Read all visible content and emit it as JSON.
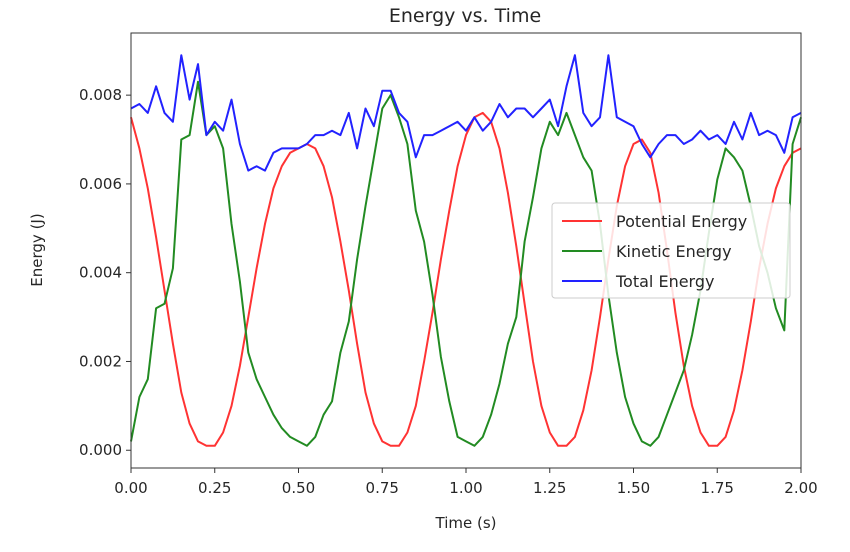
{
  "chart_data": {
    "type": "line",
    "title": "Energy vs. Time",
    "xlabel": "Time (s)",
    "ylabel": "Energy (J)",
    "xlim": [
      0.0,
      2.0
    ],
    "ylim": [
      -0.0004,
      0.0094
    ],
    "xticks": [
      0.0,
      0.25,
      0.5,
      0.75,
      1.0,
      1.25,
      1.5,
      1.75,
      2.0
    ],
    "xtick_labels": [
      "0.00",
      "0.25",
      "0.50",
      "0.75",
      "1.00",
      "1.25",
      "1.50",
      "1.75",
      "2.00"
    ],
    "yticks": [
      0.0,
      0.002,
      0.004,
      0.006,
      0.008
    ],
    "ytick_labels": [
      "0.000",
      "0.002",
      "0.004",
      "0.006",
      "0.008"
    ],
    "grid": false,
    "legend_position": "center-right",
    "series": [
      {
        "name": "Potential Energy",
        "color": "#ff3333",
        "x": [
          0.0,
          0.025,
          0.05,
          0.075,
          0.1,
          0.125,
          0.15,
          0.175,
          0.2,
          0.225,
          0.25,
          0.275,
          0.3,
          0.325,
          0.35,
          0.375,
          0.4,
          0.425,
          0.45,
          0.475,
          0.5,
          0.525,
          0.55,
          0.575,
          0.6,
          0.625,
          0.65,
          0.675,
          0.7,
          0.725,
          0.75,
          0.775,
          0.8,
          0.825,
          0.85,
          0.875,
          0.9,
          0.925,
          0.95,
          0.975,
          1.0,
          1.025,
          1.05,
          1.075,
          1.1,
          1.125,
          1.15,
          1.175,
          1.2,
          1.225,
          1.25,
          1.275,
          1.3,
          1.325,
          1.35,
          1.375,
          1.4,
          1.425,
          1.45,
          1.475,
          1.5,
          1.525,
          1.55,
          1.575,
          1.6,
          1.625,
          1.65,
          1.675,
          1.7,
          1.725,
          1.75,
          1.775,
          1.8,
          1.825,
          1.85,
          1.875,
          1.9,
          1.925,
          1.95,
          1.975,
          2.0
        ],
        "values": [
          0.0075,
          0.0068,
          0.0059,
          0.0048,
          0.0036,
          0.0024,
          0.0013,
          0.0006,
          0.0002,
          0.0001,
          0.0001,
          0.0004,
          0.001,
          0.0019,
          0.003,
          0.0041,
          0.0051,
          0.0059,
          0.0064,
          0.0067,
          0.0068,
          0.0069,
          0.0068,
          0.0064,
          0.0057,
          0.0047,
          0.0036,
          0.0024,
          0.0013,
          0.0006,
          0.0002,
          0.0001,
          0.0001,
          0.0004,
          0.001,
          0.002,
          0.0031,
          0.0043,
          0.0054,
          0.0064,
          0.0071,
          0.0075,
          0.0076,
          0.0074,
          0.0068,
          0.0058,
          0.0046,
          0.0033,
          0.002,
          0.001,
          0.0004,
          0.0001,
          0.0001,
          0.0003,
          0.0009,
          0.0018,
          0.003,
          0.0043,
          0.0055,
          0.0064,
          0.0069,
          0.007,
          0.0067,
          0.0058,
          0.0045,
          0.0031,
          0.0019,
          0.001,
          0.0004,
          0.0001,
          0.0001,
          0.0003,
          0.0009,
          0.0018,
          0.0029,
          0.0041,
          0.0051,
          0.0059,
          0.0064,
          0.0067,
          0.0068
        ]
      },
      {
        "name": "Kinetic Energy",
        "color": "#228b22",
        "x": [
          0.0,
          0.025,
          0.05,
          0.075,
          0.1,
          0.125,
          0.15,
          0.175,
          0.2,
          0.225,
          0.25,
          0.275,
          0.3,
          0.325,
          0.35,
          0.375,
          0.4,
          0.425,
          0.45,
          0.475,
          0.5,
          0.525,
          0.55,
          0.575,
          0.6,
          0.625,
          0.65,
          0.675,
          0.7,
          0.725,
          0.75,
          0.775,
          0.8,
          0.825,
          0.85,
          0.875,
          0.9,
          0.925,
          0.95,
          0.975,
          1.0,
          1.025,
          1.05,
          1.075,
          1.1,
          1.125,
          1.15,
          1.175,
          1.2,
          1.225,
          1.25,
          1.275,
          1.3,
          1.325,
          1.35,
          1.375,
          1.4,
          1.425,
          1.45,
          1.475,
          1.5,
          1.525,
          1.55,
          1.575,
          1.6,
          1.625,
          1.65,
          1.675,
          1.7,
          1.725,
          1.75,
          1.775,
          1.8,
          1.825,
          1.85,
          1.875,
          1.9,
          1.925,
          1.95,
          1.975,
          2.0
        ],
        "values": [
          0.0002,
          0.0012,
          0.0016,
          0.0032,
          0.0033,
          0.0041,
          0.007,
          0.0071,
          0.0083,
          0.0071,
          0.0073,
          0.0068,
          0.0051,
          0.0038,
          0.0022,
          0.0016,
          0.0012,
          0.0008,
          0.0005,
          0.0003,
          0.0002,
          0.0001,
          0.0003,
          0.0008,
          0.0011,
          0.0022,
          0.0029,
          0.0043,
          0.0055,
          0.0066,
          0.0077,
          0.008,
          0.0075,
          0.0069,
          0.0054,
          0.0047,
          0.0035,
          0.0021,
          0.0011,
          0.0003,
          0.0002,
          0.0001,
          0.0003,
          0.0008,
          0.0015,
          0.0024,
          0.003,
          0.0047,
          0.0057,
          0.0068,
          0.0074,
          0.0071,
          0.0076,
          0.0071,
          0.0066,
          0.0063,
          0.0051,
          0.0035,
          0.0022,
          0.0012,
          0.0006,
          0.0002,
          0.0001,
          0.0003,
          0.0008,
          0.0013,
          0.0018,
          0.0026,
          0.0036,
          0.0049,
          0.0061,
          0.0068,
          0.0066,
          0.0063,
          0.0055,
          0.0046,
          0.004,
          0.0032,
          0.0027,
          0.0069,
          0.0075
        ]
      },
      {
        "name": "Total Energy",
        "color": "#2222ff",
        "x": [
          0.0,
          0.025,
          0.05,
          0.075,
          0.1,
          0.125,
          0.15,
          0.175,
          0.2,
          0.225,
          0.25,
          0.275,
          0.3,
          0.325,
          0.35,
          0.375,
          0.4,
          0.425,
          0.45,
          0.475,
          0.5,
          0.525,
          0.55,
          0.575,
          0.6,
          0.625,
          0.65,
          0.675,
          0.7,
          0.725,
          0.75,
          0.775,
          0.8,
          0.825,
          0.85,
          0.875,
          0.9,
          0.925,
          0.95,
          0.975,
          1.0,
          1.025,
          1.05,
          1.075,
          1.1,
          1.125,
          1.15,
          1.175,
          1.2,
          1.225,
          1.25,
          1.275,
          1.3,
          1.325,
          1.35,
          1.375,
          1.4,
          1.425,
          1.45,
          1.475,
          1.5,
          1.525,
          1.55,
          1.575,
          1.6,
          1.625,
          1.65,
          1.675,
          1.7,
          1.725,
          1.75,
          1.775,
          1.8,
          1.825,
          1.85,
          1.875,
          1.9,
          1.925,
          1.95,
          1.975,
          2.0
        ],
        "values": [
          0.0077,
          0.0078,
          0.0076,
          0.0082,
          0.0076,
          0.0074,
          0.0089,
          0.0079,
          0.0087,
          0.0071,
          0.0074,
          0.0072,
          0.0079,
          0.0069,
          0.0063,
          0.0064,
          0.0063,
          0.0067,
          0.0068,
          0.0068,
          0.0068,
          0.0069,
          0.0071,
          0.0071,
          0.0072,
          0.0071,
          0.0076,
          0.0068,
          0.0077,
          0.0073,
          0.0081,
          0.0081,
          0.0076,
          0.0074,
          0.0066,
          0.0071,
          0.0071,
          0.0072,
          0.0073,
          0.0074,
          0.0072,
          0.0075,
          0.0072,
          0.0074,
          0.0078,
          0.0075,
          0.0077,
          0.0077,
          0.0075,
          0.0077,
          0.0079,
          0.0073,
          0.0082,
          0.0089,
          0.0076,
          0.0073,
          0.0075,
          0.0089,
          0.0075,
          0.0074,
          0.0073,
          0.0069,
          0.0066,
          0.0069,
          0.0071,
          0.0071,
          0.0069,
          0.007,
          0.0072,
          0.007,
          0.0071,
          0.0069,
          0.0074,
          0.007,
          0.0076,
          0.0071,
          0.0072,
          0.0071,
          0.0067,
          0.0075,
          0.0076
        ]
      }
    ]
  }
}
